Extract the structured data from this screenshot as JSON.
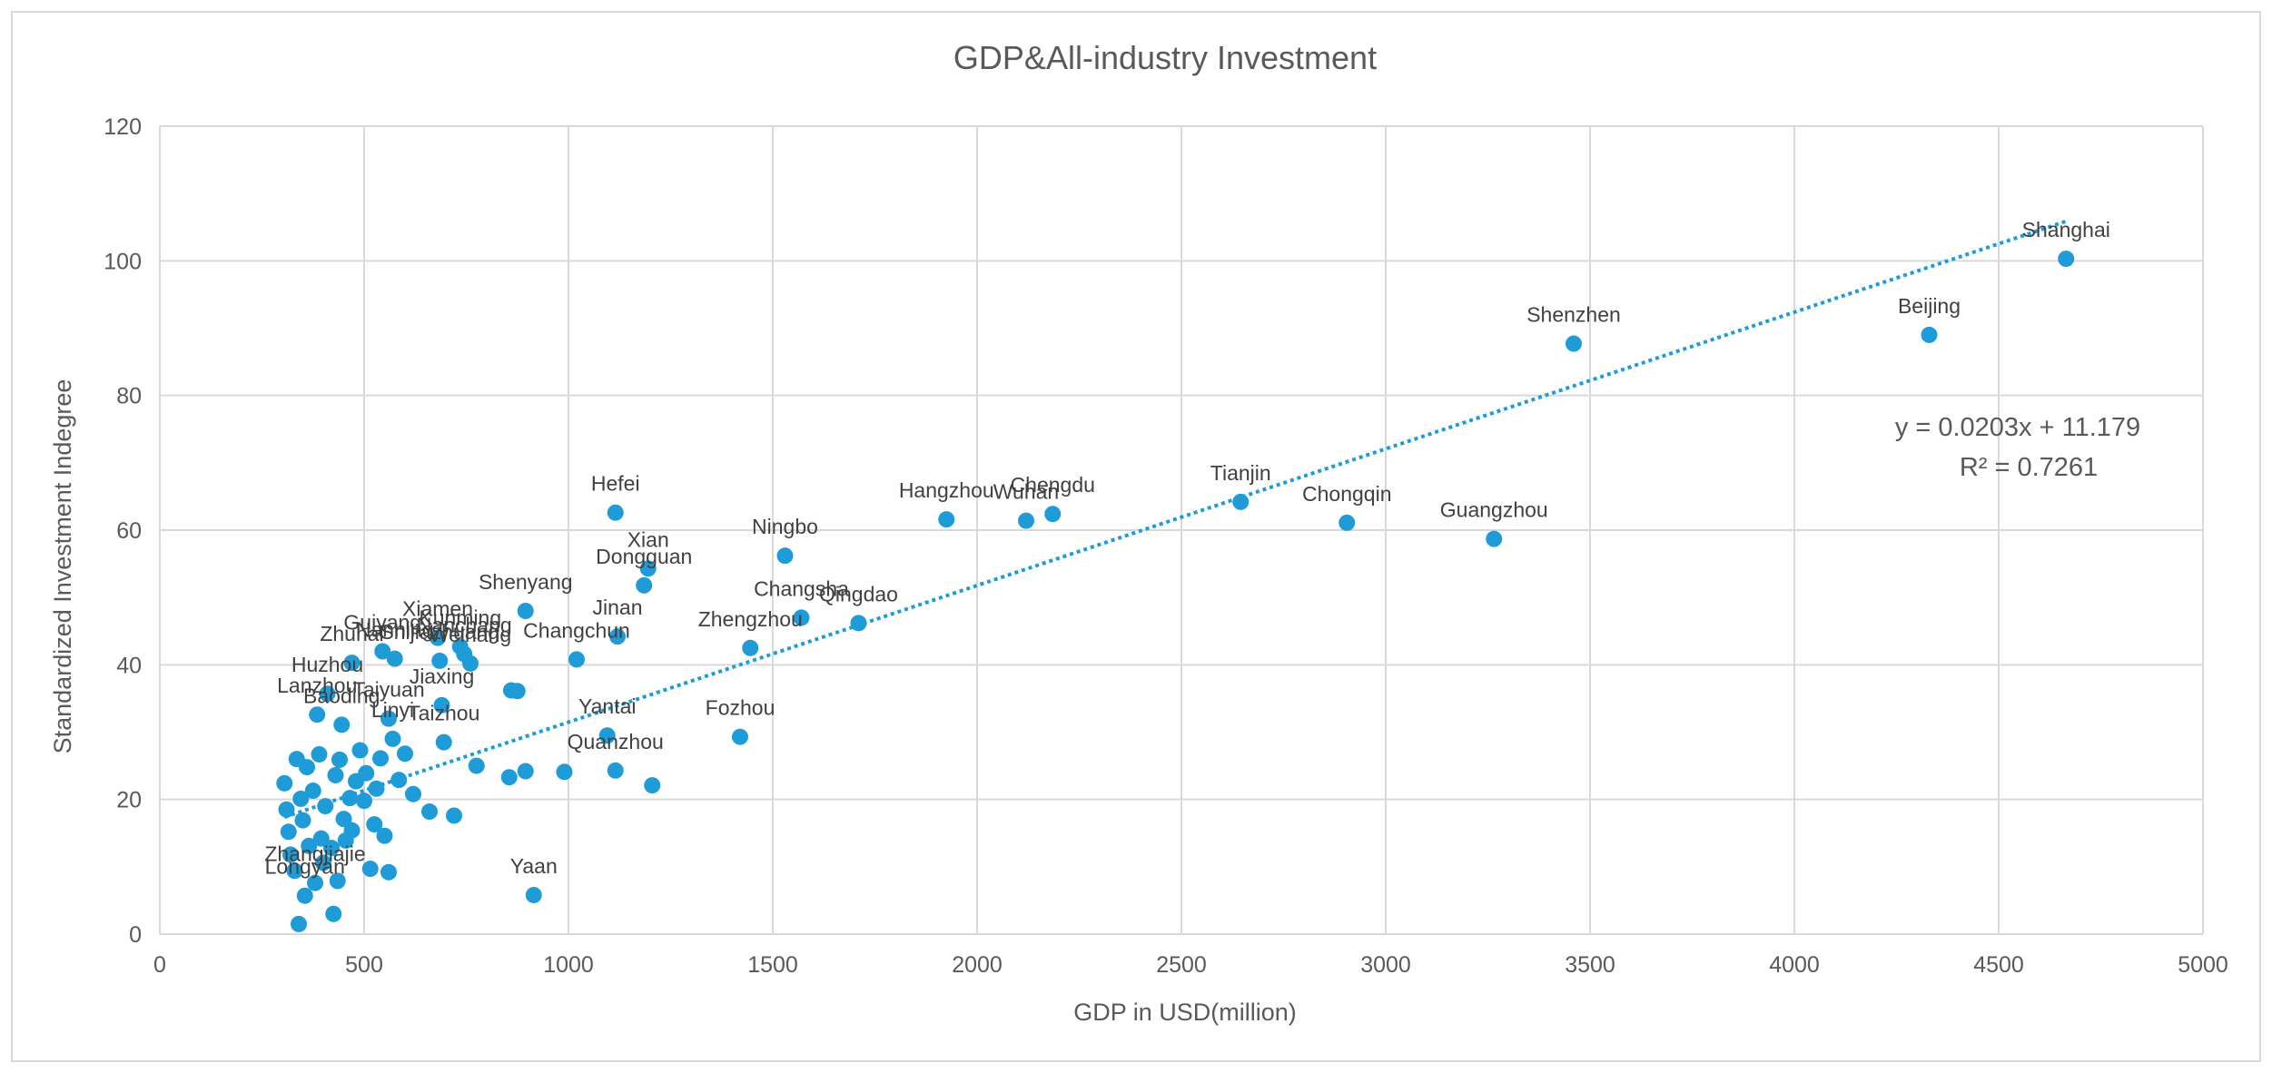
{
  "chart_data": {
    "type": "scatter",
    "title": "GDP&All-industry Investment",
    "xlabel": "GDP in USD(million)",
    "ylabel": "Standardized Investment Indegree",
    "xlim": [
      0,
      5000
    ],
    "ylim": [
      0,
      120
    ],
    "xticks": [
      "0",
      "500",
      "1000",
      "1500",
      "2000",
      "2500",
      "3000",
      "3500",
      "4000",
      "4500",
      "5000"
    ],
    "yticks": [
      "0",
      "20",
      "40",
      "60",
      "80",
      "100",
      "120"
    ],
    "grid": true,
    "legend": "none",
    "colors": {
      "marker": "#1f9bd7",
      "trendline": "#1f9bd7",
      "grid": "#d9d9d9"
    },
    "trendline": {
      "type": "linear",
      "slope": 0.0203,
      "intercept": 11.179,
      "equation": "y = 0.0203x + 11.179",
      "r2": "R² = 0.7261"
    },
    "points": [
      {
        "x": 4665,
        "y": 100.3,
        "label": "Shanghai"
      },
      {
        "x": 4330,
        "y": 89.0,
        "label": "Beijing"
      },
      {
        "x": 3460,
        "y": 87.7,
        "label": "Shenzhen"
      },
      {
        "x": 3265,
        "y": 58.7,
        "label": "Guangzhou"
      },
      {
        "x": 2905,
        "y": 61.1,
        "label": "Chongqin"
      },
      {
        "x": 2645,
        "y": 64.2,
        "label": "Tianjin"
      },
      {
        "x": 2185,
        "y": 62.4,
        "label": "Chengdu"
      },
      {
        "x": 2120,
        "y": 61.4,
        "label": "Wuhan"
      },
      {
        "x": 1925,
        "y": 61.6,
        "label": "Hangzhou"
      },
      {
        "x": 1710,
        "y": 46.2,
        "label": "Qingdao"
      },
      {
        "x": 1570,
        "y": 47.0,
        "label": "Changsha"
      },
      {
        "x": 1530,
        "y": 56.2,
        "label": "Ningbo"
      },
      {
        "x": 1445,
        "y": 42.5,
        "label": "Zhengzhou"
      },
      {
        "x": 1420,
        "y": 29.3,
        "label": "Fozhou"
      },
      {
        "x": 1205,
        "y": 22.1,
        "label": ""
      },
      {
        "x": 1195,
        "y": 54.3,
        "label": "Xian"
      },
      {
        "x": 1185,
        "y": 51.8,
        "label": "Dongguan"
      },
      {
        "x": 1120,
        "y": 44.2,
        "label": "Jinan"
      },
      {
        "x": 1115,
        "y": 24.3,
        "label": "Quanzhou"
      },
      {
        "x": 1115,
        "y": 62.6,
        "label": "Hefei"
      },
      {
        "x": 1095,
        "y": 29.5,
        "label": "Yantai"
      },
      {
        "x": 1020,
        "y": 40.8,
        "label": "Changchun"
      },
      {
        "x": 990,
        "y": 24.1,
        "label": ""
      },
      {
        "x": 915,
        "y": 5.8,
        "label": "Yaan"
      },
      {
        "x": 895,
        "y": 24.2,
        "label": ""
      },
      {
        "x": 895,
        "y": 48.0,
        "label": "Shenyang"
      },
      {
        "x": 875,
        "y": 36.1,
        "label": ""
      },
      {
        "x": 860,
        "y": 36.2,
        "label": ""
      },
      {
        "x": 855,
        "y": 23.3,
        "label": ""
      },
      {
        "x": 775,
        "y": 25.0,
        "label": ""
      },
      {
        "x": 760,
        "y": 40.2,
        "label": "Weihang"
      },
      {
        "x": 745,
        "y": 41.6,
        "label": "Nanchang"
      },
      {
        "x": 735,
        "y": 42.7,
        "label": "Kunming"
      },
      {
        "x": 720,
        "y": 17.6,
        "label": ""
      },
      {
        "x": 685,
        "y": 40.6,
        "label": "Shijiazhuang"
      },
      {
        "x": 680,
        "y": 44.0,
        "label": "Xiamen"
      },
      {
        "x": 695,
        "y": 28.5,
        "label": "Taizhou"
      },
      {
        "x": 690,
        "y": 34.0,
        "label": "Jiaxing"
      },
      {
        "x": 660,
        "y": 18.2,
        "label": ""
      },
      {
        "x": 620,
        "y": 20.8,
        "label": ""
      },
      {
        "x": 575,
        "y": 40.9,
        "label": "Nanning"
      },
      {
        "x": 570,
        "y": 29.0,
        "label": "Linyi"
      },
      {
        "x": 560,
        "y": 32.0,
        "label": "Taiyuan"
      },
      {
        "x": 560,
        "y": 9.2,
        "label": ""
      },
      {
        "x": 545,
        "y": 42.0,
        "label": "Guiyang"
      },
      {
        "x": 525,
        "y": 16.3,
        "label": ""
      },
      {
        "x": 515,
        "y": 9.7,
        "label": ""
      },
      {
        "x": 470,
        "y": 40.3,
        "label": "Zhuhai"
      },
      {
        "x": 465,
        "y": 20.2,
        "label": ""
      },
      {
        "x": 450,
        "y": 17.1,
        "label": ""
      },
      {
        "x": 445,
        "y": 31.1,
        "label": "Baoding"
      },
      {
        "x": 435,
        "y": 7.9,
        "label": ""
      },
      {
        "x": 425,
        "y": 3.0,
        "label": ""
      },
      {
        "x": 410,
        "y": 35.7,
        "label": "Huzhou"
      },
      {
        "x": 385,
        "y": 32.6,
        "label": "Lanzhou"
      },
      {
        "x": 380,
        "y": 7.6,
        "label": "Zhangjiajie"
      },
      {
        "x": 355,
        "y": 5.7,
        "label": "Longyan"
      },
      {
        "x": 340,
        "y": 1.5,
        "label": ""
      },
      {
        "x": 330,
        "y": 9.4,
        "label": ""
      },
      {
        "x": 320,
        "y": 11.8,
        "label": ""
      },
      {
        "x": 315,
        "y": 15.2,
        "label": ""
      },
      {
        "x": 310,
        "y": 18.5,
        "label": ""
      },
      {
        "x": 305,
        "y": 22.4,
        "label": ""
      },
      {
        "x": 345,
        "y": 20.1,
        "label": ""
      },
      {
        "x": 360,
        "y": 24.8,
        "label": ""
      },
      {
        "x": 375,
        "y": 21.3,
        "label": ""
      },
      {
        "x": 390,
        "y": 26.7,
        "label": ""
      },
      {
        "x": 395,
        "y": 14.2,
        "label": ""
      },
      {
        "x": 405,
        "y": 19.0,
        "label": ""
      },
      {
        "x": 420,
        "y": 12.8,
        "label": ""
      },
      {
        "x": 430,
        "y": 23.6,
        "label": ""
      },
      {
        "x": 440,
        "y": 25.9,
        "label": ""
      },
      {
        "x": 455,
        "y": 13.9,
        "label": ""
      },
      {
        "x": 480,
        "y": 22.7,
        "label": ""
      },
      {
        "x": 490,
        "y": 27.3,
        "label": ""
      },
      {
        "x": 500,
        "y": 19.8,
        "label": ""
      },
      {
        "x": 505,
        "y": 23.9,
        "label": ""
      },
      {
        "x": 530,
        "y": 21.6,
        "label": ""
      },
      {
        "x": 540,
        "y": 26.1,
        "label": ""
      },
      {
        "x": 550,
        "y": 14.6,
        "label": ""
      },
      {
        "x": 585,
        "y": 22.9,
        "label": ""
      },
      {
        "x": 600,
        "y": 26.8,
        "label": ""
      },
      {
        "x": 350,
        "y": 16.9,
        "label": ""
      },
      {
        "x": 365,
        "y": 13.1,
        "label": ""
      },
      {
        "x": 335,
        "y": 26.0,
        "label": ""
      },
      {
        "x": 400,
        "y": 10.6,
        "label": ""
      },
      {
        "x": 470,
        "y": 15.4,
        "label": ""
      }
    ]
  }
}
